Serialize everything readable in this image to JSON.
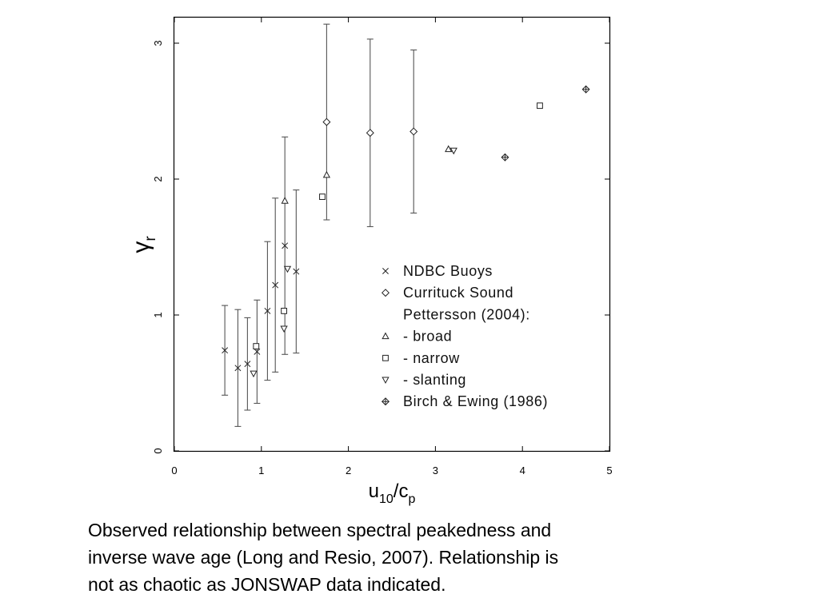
{
  "chart_data": {
    "type": "scatter",
    "title": "",
    "xlim": [
      0,
      5
    ],
    "ylim": [
      0,
      3.2
    ],
    "xticks": [
      0,
      1,
      2,
      3,
      4,
      5
    ],
    "yticks": [
      0,
      1,
      2,
      3
    ],
    "xlabel": {
      "main": "u",
      "sub1": "10",
      "slash": "/c",
      "sub2": "p"
    },
    "ylabel": {
      "main": "γ",
      "sub": "r"
    },
    "grid": false,
    "legend_placement": "lower-right",
    "legend": [
      {
        "marker": "cross",
        "label": "NDBC Buoys"
      },
      {
        "marker": "diamond",
        "label": "Currituck Sound"
      },
      {
        "marker": "none",
        "label": "Pettersson (2004):"
      },
      {
        "marker": "triangle-up",
        "label": "- broad"
      },
      {
        "marker": "square",
        "label": "- narrow"
      },
      {
        "marker": "triangle-down",
        "label": "- slanting"
      },
      {
        "marker": "diamond-plus",
        "label": "Birch & Ewing (1986)"
      }
    ],
    "series": [
      {
        "name": "NDBC Buoys",
        "marker": "cross",
        "points": [
          {
            "x": 0.58,
            "y": 0.74,
            "lo": 0.41,
            "hi": 1.07
          },
          {
            "x": 0.73,
            "y": 0.61,
            "lo": 0.18,
            "hi": 1.04
          },
          {
            "x": 0.84,
            "y": 0.64,
            "lo": 0.3,
            "hi": 0.98
          },
          {
            "x": 0.95,
            "y": 0.73,
            "lo": 0.35,
            "hi": 1.11
          },
          {
            "x": 1.07,
            "y": 1.03,
            "lo": 0.52,
            "hi": 1.54
          },
          {
            "x": 1.16,
            "y": 1.22,
            "lo": 0.58,
            "hi": 1.86
          },
          {
            "x": 1.27,
            "y": 1.51,
            "lo": 0.71,
            "hi": 2.31
          },
          {
            "x": 1.4,
            "y": 1.32,
            "lo": 0.72,
            "hi": 1.92
          }
        ]
      },
      {
        "name": "Currituck Sound",
        "marker": "diamond",
        "points": [
          {
            "x": 1.75,
            "y": 2.42,
            "lo": 1.7,
            "hi": 3.14
          },
          {
            "x": 2.25,
            "y": 2.34,
            "lo": 1.65,
            "hi": 3.03
          },
          {
            "x": 2.75,
            "y": 2.35,
            "lo": 1.75,
            "hi": 2.95
          }
        ]
      },
      {
        "name": "- broad",
        "marker": "triangle-up",
        "points": [
          {
            "x": 1.27,
            "y": 1.84
          },
          {
            "x": 1.75,
            "y": 2.03
          },
          {
            "x": 3.15,
            "y": 2.22
          }
        ]
      },
      {
        "name": "- narrow",
        "marker": "square",
        "points": [
          {
            "x": 0.94,
            "y": 0.77
          },
          {
            "x": 1.26,
            "y": 1.03
          },
          {
            "x": 1.7,
            "y": 1.87
          },
          {
            "x": 4.2,
            "y": 2.54
          }
        ]
      },
      {
        "name": "- slanting",
        "marker": "triangle-down",
        "points": [
          {
            "x": 0.91,
            "y": 0.57
          },
          {
            "x": 1.26,
            "y": 0.9
          },
          {
            "x": 1.3,
            "y": 1.34
          },
          {
            "x": 3.21,
            "y": 2.21
          }
        ]
      },
      {
        "name": "Birch & Ewing (1986)",
        "marker": "diamond-plus",
        "points": [
          {
            "x": 3.8,
            "y": 2.16
          },
          {
            "x": 4.73,
            "y": 2.66
          }
        ]
      }
    ]
  },
  "caption": "Observed relationship between spectral peakedness and\n inverse wave age (Long and Resio, 2007).  Relationship is\n not as chaotic as JONSWAP data indicated."
}
